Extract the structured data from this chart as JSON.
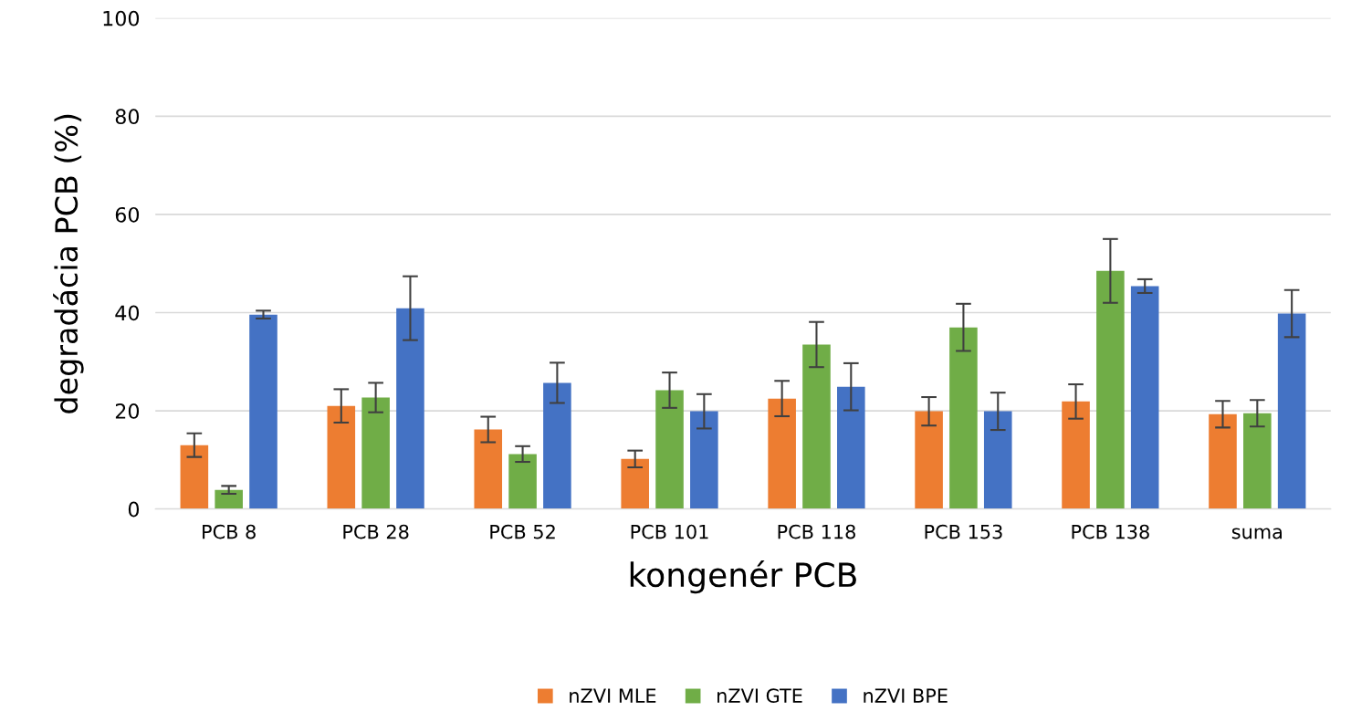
{
  "chart_data": {
    "type": "bar",
    "xlabel": "kongenér PCB",
    "ylabel": "degradácia PCB (%)",
    "categories": [
      "PCB 8",
      "PCB 28",
      "PCB 52",
      "PCB 101",
      "PCB 118",
      "PCB 153",
      "PCB 138",
      "suma"
    ],
    "series": [
      {
        "name": "nZVI MLE",
        "color": "#ed7d31",
        "values": [
          13.0,
          21.0,
          16.2,
          10.2,
          22.5,
          19.9,
          21.9,
          19.3
        ],
        "errors": [
          2.4,
          3.4,
          2.6,
          1.7,
          3.6,
          2.9,
          3.5,
          2.7
        ]
      },
      {
        "name": "nZVI GTE",
        "color": "#70ad47",
        "values": [
          3.9,
          22.7,
          11.2,
          24.2,
          33.5,
          37.0,
          48.5,
          19.5
        ],
        "errors": [
          0.8,
          3.0,
          1.6,
          3.6,
          4.6,
          4.8,
          6.5,
          2.7
        ]
      },
      {
        "name": "nZVI BPE",
        "color": "#4472c4",
        "values": [
          39.6,
          40.9,
          25.7,
          19.9,
          24.9,
          19.9,
          45.4,
          39.8
        ],
        "errors": [
          0.8,
          6.5,
          4.1,
          3.5,
          4.8,
          3.8,
          1.4,
          4.8
        ]
      }
    ],
    "ylim": [
      0,
      100
    ],
    "yticks": [
      0,
      20,
      40,
      60,
      80,
      100
    ],
    "grid": "y",
    "legend": "bottom"
  }
}
